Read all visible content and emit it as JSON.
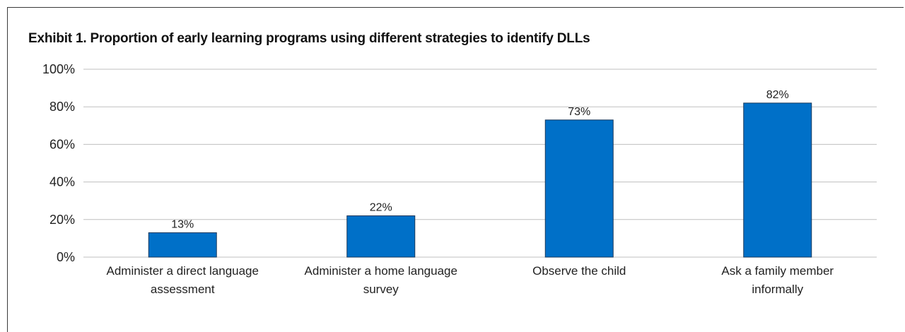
{
  "chart_data": {
    "type": "bar",
    "title": "Exhibit 1. Proportion of early learning programs using different strategies to identify DLLs",
    "categories": [
      [
        "Administer a direct language",
        "assessment"
      ],
      [
        "Administer a home language",
        "survey"
      ],
      [
        "Observe the child"
      ],
      [
        "Ask a family member",
        "informally"
      ]
    ],
    "values": [
      13,
      22,
      73,
      82
    ],
    "value_labels": [
      "13%",
      "22%",
      "73%",
      "82%"
    ],
    "y_ticks": [
      0,
      20,
      40,
      60,
      80,
      100
    ],
    "y_tick_labels": [
      "0%",
      "20%",
      "40%",
      "60%",
      "80%",
      "100%"
    ],
    "ylim": [
      0,
      100
    ],
    "grid": true,
    "colors": {
      "bar": "#0070c8",
      "bar_edge": "#1a3a5c",
      "grid": "#bfbfbf"
    }
  }
}
